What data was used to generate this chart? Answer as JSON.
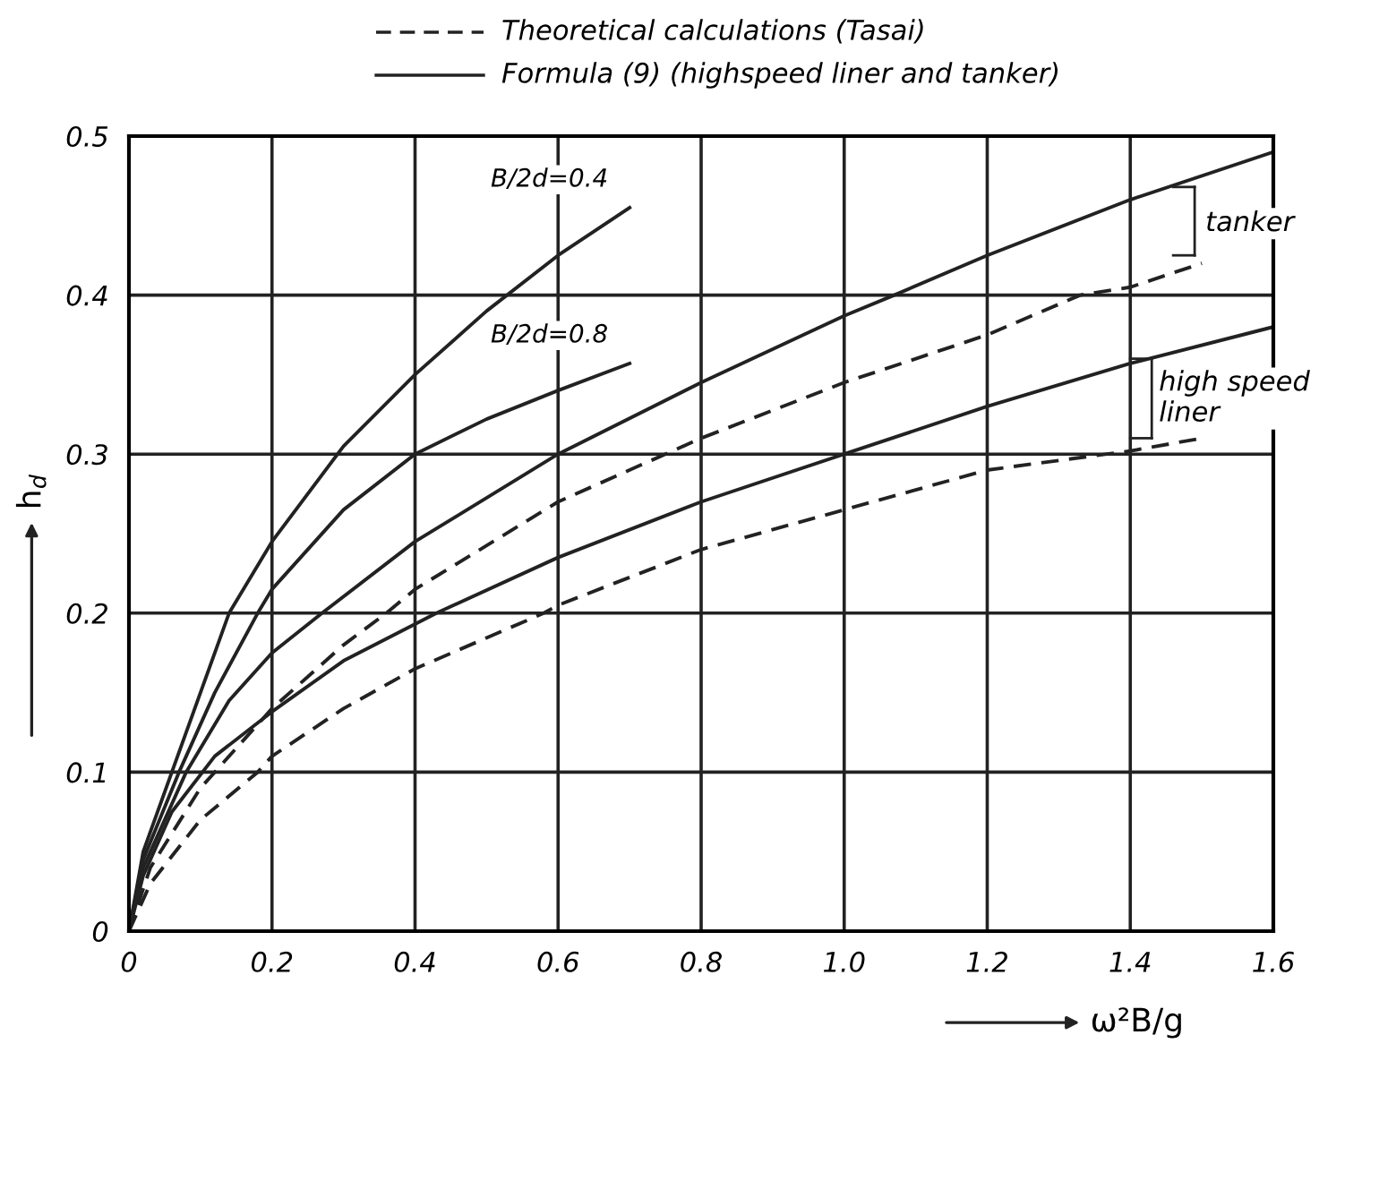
{
  "chart_data": {
    "type": "line",
    "xlabel": "ω²B/g",
    "ylabel": "h$_{d}$",
    "xlim": [
      0,
      1.6
    ],
    "ylim": [
      0,
      0.5
    ],
    "xticks": [
      0,
      0.2,
      0.4,
      0.6,
      0.8,
      {
        "value": 1.0,
        "label": "1.0"
      },
      1.2,
      1.4,
      1.6
    ],
    "yticks": [
      0,
      0.1,
      0.2,
      0.3,
      0.4,
      0.5
    ],
    "grid": true,
    "series": [
      {
        "name": "B/2d=0.4",
        "color": "#222222",
        "line_style": "solid",
        "x": [
          0,
          0.02,
          0.06,
          0.1,
          0.14,
          0.2,
          0.3,
          0.4,
          0.5,
          0.6,
          0.7
        ],
        "values": [
          0,
          0.05,
          0.1,
          0.15,
          0.2,
          0.245,
          0.305,
          0.35,
          0.39,
          0.425,
          0.455
        ]
      },
      {
        "name": "B/2d=0.8",
        "color": "#222222",
        "line_style": "solid",
        "x": [
          0,
          0.02,
          0.07,
          0.12,
          0.18,
          0.2,
          0.3,
          0.4,
          0.5,
          0.6,
          0.7
        ],
        "values": [
          0,
          0.045,
          0.1,
          0.15,
          0.2,
          0.215,
          0.265,
          0.3,
          0.322,
          0.34,
          0.357
        ]
      },
      {
        "color": "#222222",
        "line_style": "solid",
        "x": [
          0,
          0.02,
          0.08,
          0.14,
          0.2,
          0.27,
          0.4,
          0.6,
          0.8,
          1.0,
          1.07,
          1.2,
          1.4,
          1.6
        ],
        "values": [
          0,
          0.04,
          0.1,
          0.145,
          0.175,
          0.2,
          0.245,
          0.3,
          0.345,
          0.387,
          0.4,
          0.425,
          0.46,
          0.49
        ]
      },
      {
        "color": "#222222",
        "line_style": "dashed",
        "x": [
          0,
          0.03,
          0.1,
          0.2,
          0.3,
          0.36,
          0.4,
          0.6,
          0.8,
          1.0,
          1.2,
          1.33,
          1.4,
          1.5
        ],
        "values": [
          0,
          0.04,
          0.09,
          0.14,
          0.18,
          0.2,
          0.215,
          0.27,
          0.31,
          0.345,
          0.375,
          0.4,
          0.405,
          0.42
        ]
      },
      {
        "color": "#222222",
        "line_style": "solid",
        "x": [
          0,
          0.02,
          0.06,
          0.12,
          0.2,
          0.3,
          0.43,
          0.6,
          0.8,
          1.0,
          1.2,
          1.4,
          1.6
        ],
        "values": [
          0,
          0.035,
          0.075,
          0.11,
          0.138,
          0.17,
          0.2,
          0.235,
          0.27,
          0.3,
          0.33,
          0.357,
          0.38
        ]
      },
      {
        "color": "#222222",
        "line_style": "dashed",
        "x": [
          0,
          0.03,
          0.1,
          0.18,
          0.2,
          0.3,
          0.4,
          0.58,
          0.6,
          0.8,
          1.0,
          1.2,
          1.4,
          1.5
        ],
        "values": [
          0,
          0.03,
          0.07,
          0.1,
          0.11,
          0.14,
          0.165,
          0.2,
          0.205,
          0.24,
          0.265,
          0.29,
          0.302,
          0.31
        ]
      }
    ],
    "annotations": [
      "Theoretical calculations (Tasai)",
      "Formula (9) (highspeed liner and tanker)",
      {
        "text": "tanker",
        "x": 1.5,
        "y": 0.42
      },
      {
        "text": "high speed\nliner",
        "x": 1.5,
        "y": 0.31
      }
    ]
  }
}
